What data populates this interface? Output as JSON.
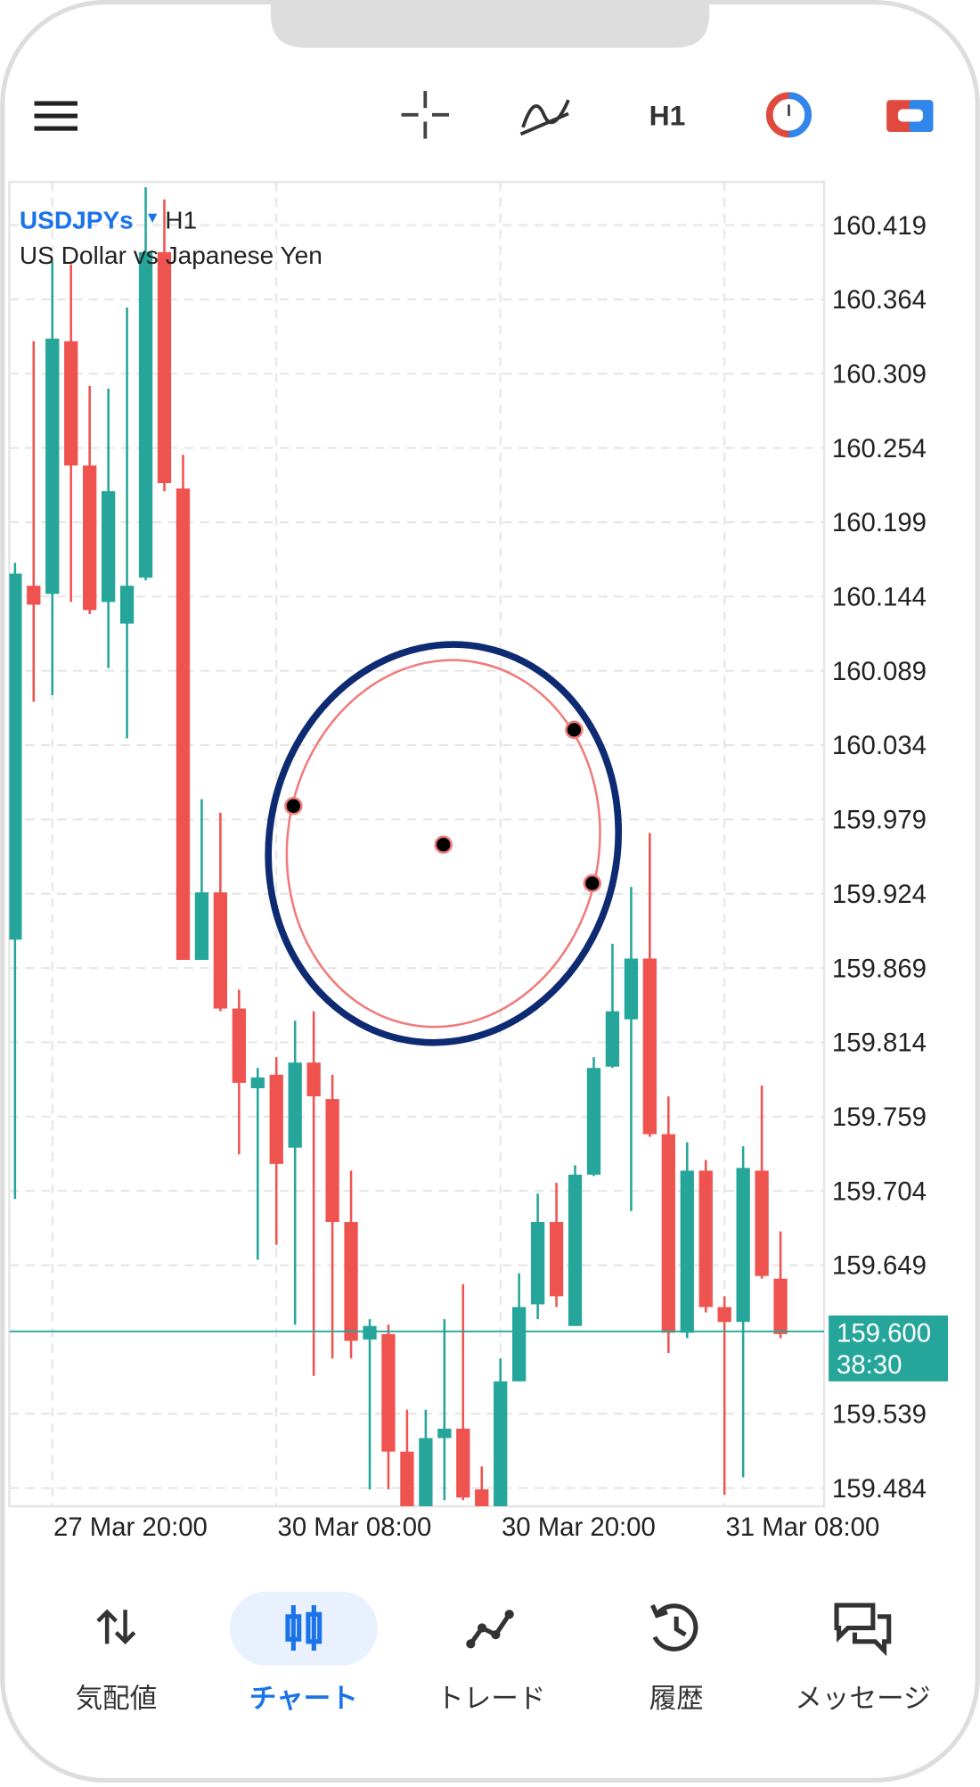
{
  "header": {
    "timeframe": "H1"
  },
  "chart_data": {
    "type": "candlestick",
    "symbol": "USDJPYs",
    "timeframe": "H1",
    "description": "US Dollar vs Japanese Yen",
    "categories": [
      null,
      null,
      "27 Mar 20:00",
      null,
      null,
      null,
      null,
      null,
      null,
      null,
      null,
      null,
      null,
      null,
      "30 Mar 08:00",
      null,
      null,
      null,
      null,
      null,
      null,
      null,
      null,
      null,
      null,
      null,
      "30 Mar 20:00",
      null,
      null,
      null,
      null,
      null,
      null,
      null,
      null,
      null,
      null,
      null,
      "31 Mar 08:00",
      null,
      null,
      null
    ],
    "open": [
      159.89,
      160.152,
      160.146,
      160.333,
      160.241,
      160.14,
      160.124,
      160.158,
      160.399,
      160.224,
      159.875,
      159.925,
      159.839,
      159.78,
      159.79,
      159.736,
      159.799,
      159.772,
      159.681,
      159.594,
      159.598,
      159.511,
      159.466,
      159.521,
      159.528,
      159.483,
      159.466,
      159.563,
      159.62,
      159.681,
      159.604,
      159.716,
      159.796,
      159.831,
      159.876,
      159.746,
      159.599,
      159.719,
      159.618,
      159.607,
      159.719,
      159.639
    ],
    "high": [
      160.169,
      160.333,
      160.392,
      160.39,
      160.3,
      160.298,
      160.358,
      160.447,
      160.438,
      160.249,
      159.994,
      159.984,
      159.853,
      159.795,
      159.803,
      159.83,
      159.837,
      159.79,
      159.719,
      159.609,
      159.605,
      159.542,
      159.542,
      159.609,
      159.635,
      159.5,
      159.58,
      159.643,
      159.702,
      159.71,
      159.723,
      159.803,
      159.887,
      159.929,
      159.969,
      159.774,
      159.74,
      159.727,
      159.626,
      159.737,
      159.782,
      159.674
    ],
    "low": [
      159.698,
      160.066,
      160.071,
      160.14,
      160.131,
      160.091,
      160.039,
      160.156,
      160.222,
      159.875,
      159.875,
      159.837,
      159.731,
      159.653,
      159.664,
      159.605,
      159.567,
      159.58,
      159.58,
      159.483,
      159.483,
      159.454,
      159.466,
      159.475,
      159.475,
      159.466,
      159.466,
      159.563,
      159.609,
      159.618,
      159.604,
      159.715,
      159.795,
      159.689,
      159.744,
      159.584,
      159.595,
      159.614,
      159.479,
      159.492,
      159.639,
      159.595
    ],
    "close": [
      160.161,
      160.138,
      160.335,
      160.241,
      160.134,
      160.222,
      160.152,
      160.399,
      160.228,
      159.875,
      159.925,
      159.839,
      159.784,
      159.788,
      159.724,
      159.799,
      159.774,
      159.681,
      159.593,
      159.604,
      159.511,
      159.458,
      159.521,
      159.528,
      159.477,
      159.466,
      159.563,
      159.618,
      159.681,
      159.626,
      159.716,
      159.795,
      159.837,
      159.876,
      159.746,
      159.599,
      159.719,
      159.618,
      159.607,
      159.721,
      159.641,
      159.598
    ],
    "up_color": "#26a69a",
    "down_color": "#ef5350",
    "current_price": {
      "value": 159.6,
      "label": "159.600"
    },
    "countdown": "38:30",
    "ylim": [
      159.4705,
      160.451
    ],
    "yticks": [
      160.419,
      160.364,
      160.309,
      160.254,
      160.199,
      160.144,
      160.089,
      160.034,
      159.979,
      159.924,
      159.869,
      159.814,
      159.759,
      159.704,
      159.649,
      159.539,
      159.484
    ],
    "grid": true
  },
  "nav": {
    "items": [
      "気配値",
      "チャート",
      "トレード",
      "履歴",
      "メッセージ"
    ],
    "active": 1
  }
}
